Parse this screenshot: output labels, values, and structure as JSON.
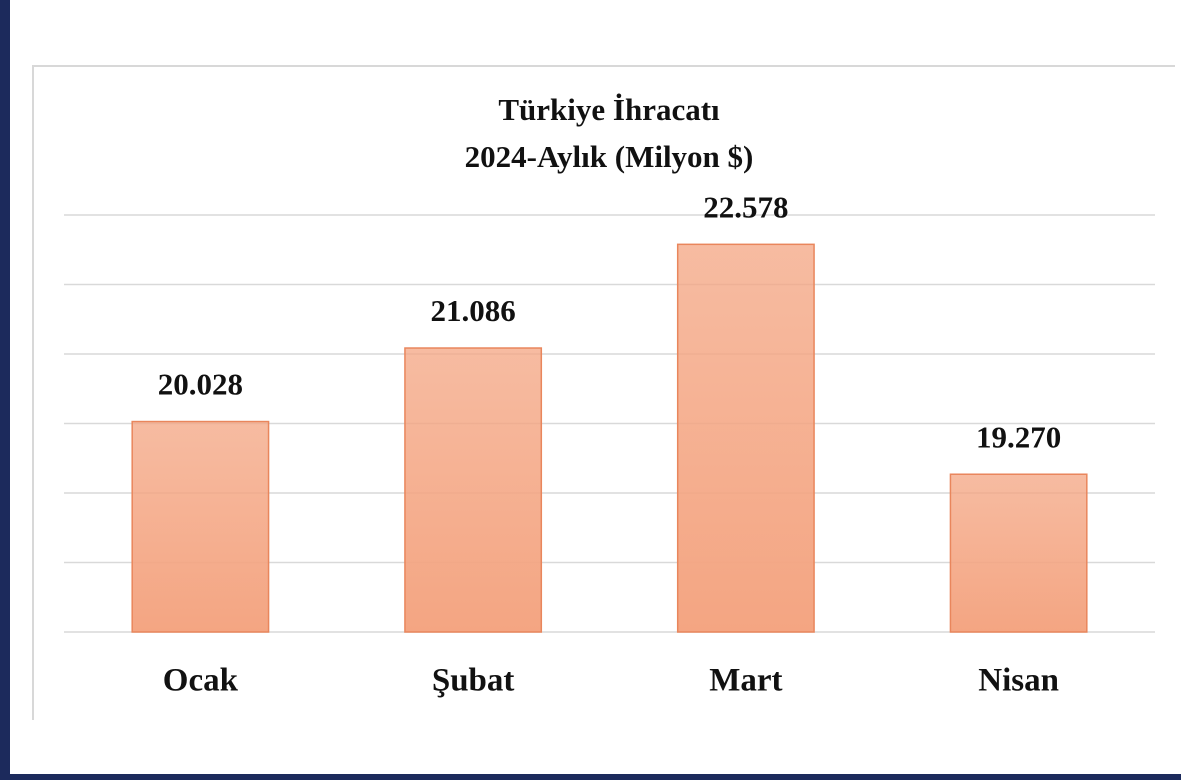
{
  "chart_data": {
    "type": "bar",
    "title": "Türkiye İhracatı",
    "subtitle": "2024-Aylık (Milyon $)",
    "categories": [
      "Ocak",
      "Şubat",
      "Mart",
      "Nisan"
    ],
    "values": [
      20028,
      21086,
      22578,
      19270
    ],
    "value_labels": [
      "20.028",
      "21.086",
      "22.578",
      "19.270"
    ],
    "color": "#f4a582",
    "ylim": [
      17000,
      23000
    ],
    "yticks": [
      17000,
      18000,
      19000,
      20000,
      21000,
      22000,
      23000
    ],
    "grid": true
  }
}
